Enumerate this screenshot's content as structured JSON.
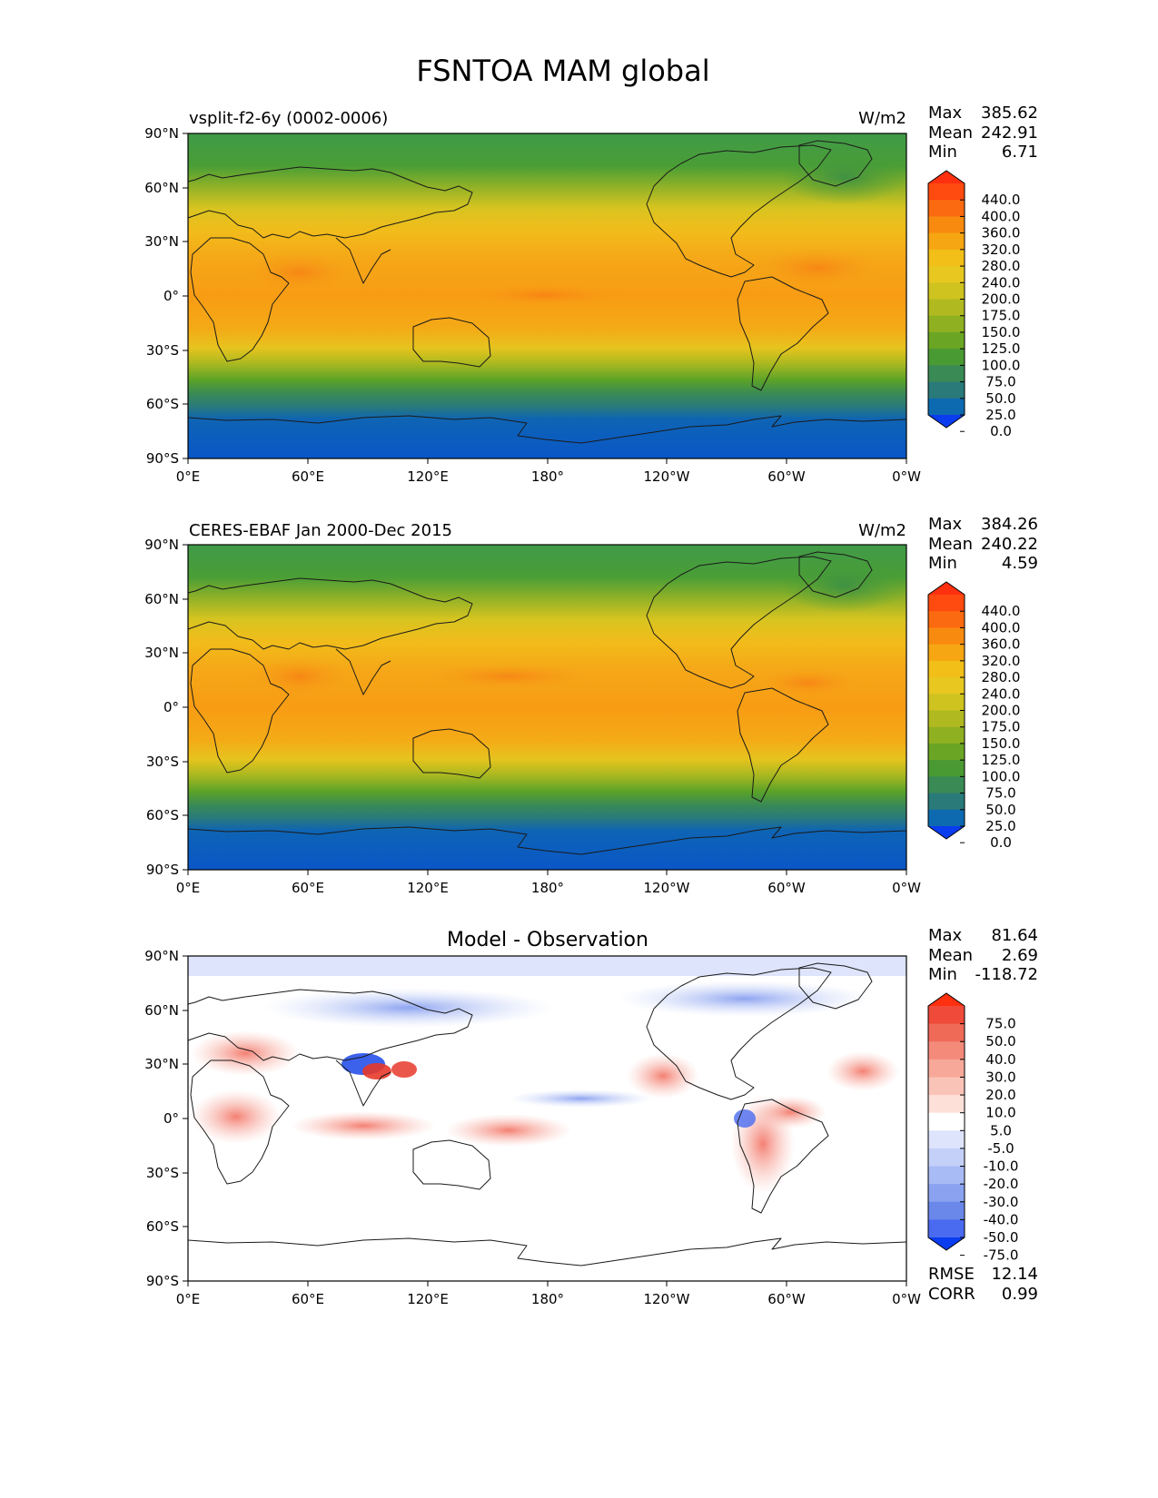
{
  "figure_title": "FSNTOA MAM global",
  "chart_data": [
    {
      "type": "heatmap",
      "panel": "test",
      "title_left": "vsplit-f2-6y (0002-0006)",
      "title_center": "",
      "units": "W/m2",
      "stats": [
        {
          "label": "Max",
          "value": "385.62"
        },
        {
          "label": "Mean",
          "value": "242.91"
        },
        {
          "label": "Min",
          "value": "6.71"
        }
      ],
      "xticks": [
        "0°E",
        "60°E",
        "120°E",
        "180°",
        "120°W",
        "60°W",
        "0°W"
      ],
      "yticks": [
        "90°N",
        "60°N",
        "30°N",
        "0°",
        "30°S",
        "60°S",
        "90°S"
      ],
      "lon_range": [
        0,
        360
      ],
      "lat_range": [
        -90,
        90
      ],
      "colorbar": {
        "levels": [
          "440.0",
          "400.0",
          "360.0",
          "320.0",
          "280.0",
          "240.0",
          "200.0",
          "175.0",
          "150.0",
          "125.0",
          "100.0",
          "75.0",
          "50.0",
          "25.0",
          "0.0"
        ],
        "colors": [
          "#ff3010",
          "#ff4a10",
          "#fb6a10",
          "#f98a10",
          "#f6a612",
          "#f2be18",
          "#e8c820",
          "#cfc320",
          "#b0ba20",
          "#8fb020",
          "#6aa524",
          "#4a9a34",
          "#3a8a55",
          "#2a7a7a",
          "#0e6ab0",
          "#0a3cf0"
        ]
      }
    },
    {
      "type": "heatmap",
      "panel": "reference",
      "title_left": "CERES-EBAF Jan 2000-Dec 2015",
      "title_center": "",
      "units": "W/m2",
      "stats": [
        {
          "label": "Max",
          "value": "384.26"
        },
        {
          "label": "Mean",
          "value": "240.22"
        },
        {
          "label": "Min",
          "value": "4.59"
        }
      ],
      "xticks": [
        "0°E",
        "60°E",
        "120°E",
        "180°",
        "120°W",
        "60°W",
        "0°W"
      ],
      "yticks": [
        "90°N",
        "60°N",
        "30°N",
        "0°",
        "30°S",
        "60°S",
        "90°S"
      ],
      "lon_range": [
        0,
        360
      ],
      "lat_range": [
        -90,
        90
      ],
      "colorbar": {
        "levels": [
          "440.0",
          "400.0",
          "360.0",
          "320.0",
          "280.0",
          "240.0",
          "200.0",
          "175.0",
          "150.0",
          "125.0",
          "100.0",
          "75.0",
          "50.0",
          "25.0",
          "0.0"
        ],
        "colors": [
          "#ff3010",
          "#ff4a10",
          "#fb6a10",
          "#f98a10",
          "#f6a612",
          "#f2be18",
          "#e8c820",
          "#cfc320",
          "#b0ba20",
          "#8fb020",
          "#6aa524",
          "#4a9a34",
          "#3a8a55",
          "#2a7a7a",
          "#0e6ab0",
          "#0a3cf0"
        ]
      }
    },
    {
      "type": "heatmap",
      "panel": "difference",
      "title_left": "",
      "title_center": "Model - Observation",
      "units": "",
      "stats": [
        {
          "label": "Max",
          "value": "81.64"
        },
        {
          "label": "Mean",
          "value": "2.69"
        },
        {
          "label": "Min",
          "value": "-118.72"
        }
      ],
      "extra_stats": [
        {
          "label": "RMSE",
          "value": "12.14"
        },
        {
          "label": "CORR",
          "value": "0.99"
        }
      ],
      "xticks": [
        "0°E",
        "60°E",
        "120°E",
        "180°",
        "120°W",
        "60°W",
        "0°W"
      ],
      "yticks": [
        "90°N",
        "60°N",
        "30°N",
        "0°",
        "30°S",
        "60°S",
        "90°S"
      ],
      "lon_range": [
        0,
        360
      ],
      "lat_range": [
        -90,
        90
      ],
      "colorbar": {
        "levels": [
          "75.0",
          "50.0",
          "40.0",
          "30.0",
          "20.0",
          "10.0",
          "5.0",
          "-5.0",
          "-10.0",
          "-20.0",
          "-30.0",
          "-40.0",
          "-50.0",
          "-75.0"
        ],
        "colors": [
          "#ff3010",
          "#f04a3a",
          "#f06a58",
          "#f48a7a",
          "#f7a898",
          "#fac3b8",
          "#fde0d8",
          "#ffffff",
          "#dde4fb",
          "#c4d0f8",
          "#a8bbf5",
          "#8aa2f0",
          "#6a88ea",
          "#4a6af0",
          "#0a3cf0"
        ]
      }
    }
  ]
}
